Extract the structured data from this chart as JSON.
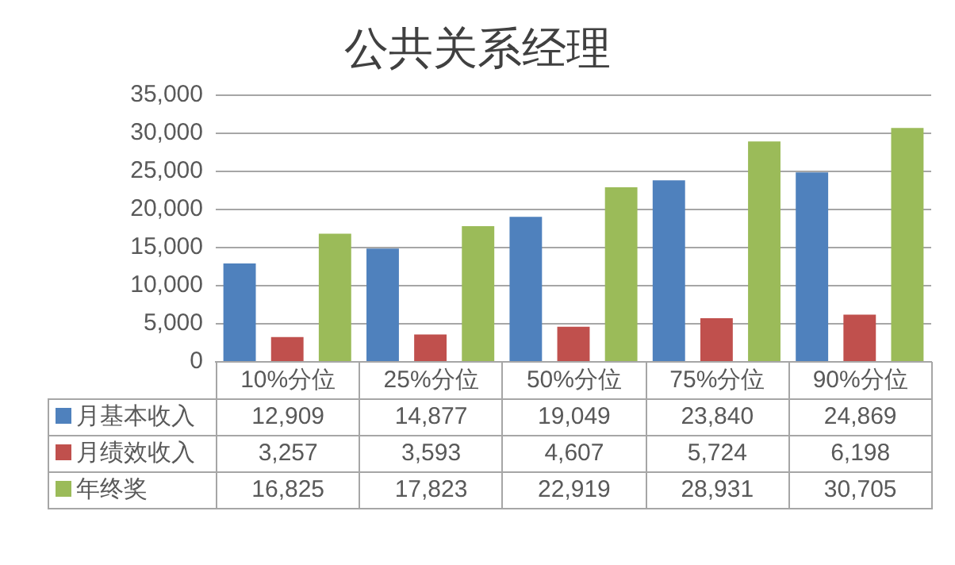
{
  "chart_data": {
    "type": "bar",
    "title": "公共关系经理",
    "categories": [
      "10%分位",
      "25%分位",
      "50%分位",
      "75%分位",
      "90%分位"
    ],
    "series": [
      {
        "name": "月基本收入",
        "color": "#4f81bd",
        "values": [
          12909,
          14877,
          19049,
          23840,
          24869
        ],
        "value_labels": [
          "12,909",
          "14,877",
          "19,049",
          "23,840",
          "24,869"
        ]
      },
      {
        "name": "月绩效收入",
        "color": "#c0504d",
        "values": [
          3257,
          3593,
          4607,
          5724,
          6198
        ],
        "value_labels": [
          "3,257",
          "3,593",
          "4,607",
          "5,724",
          "6,198"
        ]
      },
      {
        "name": "年终奖",
        "color": "#9bbb59",
        "values": [
          16825,
          17823,
          22919,
          28931,
          30705
        ],
        "value_labels": [
          "16,825",
          "17,823",
          "22,919",
          "28,931",
          "30,705"
        ]
      }
    ],
    "ylim": [
      0,
      35000
    ],
    "yticks": [
      0,
      {
        "value": 5000,
        "label": "5,000"
      },
      {
        "value": 10000,
        "label": "10,000"
      },
      {
        "value": 15000,
        "label": "15,000"
      },
      {
        "value": 20000,
        "label": "20,000"
      },
      {
        "value": 25000,
        "label": "25,000"
      },
      {
        "value": 30000,
        "label": "30,000"
      },
      {
        "value": 35000,
        "label": "35,000"
      }
    ],
    "grid": "y",
    "legend": "bottom"
  }
}
